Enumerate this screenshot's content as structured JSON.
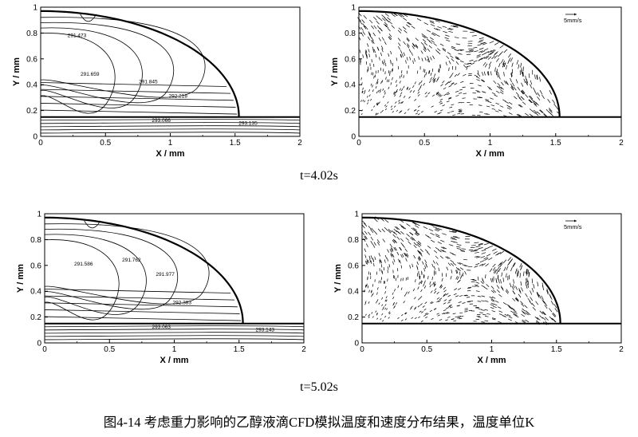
{
  "figure_caption": "图4-14 考虑重力影响的乙醇液滴CFD模拟温度和速度分布结果，温度单位K",
  "chart_data": [
    {
      "type": "contour",
      "row": 1,
      "kind": "temperature",
      "xlabel": "X / mm",
      "ylabel": "Y / mm",
      "xlim": [
        0,
        2
      ],
      "ylim": [
        0,
        1
      ],
      "xticks": [
        "0",
        "0.5",
        "1",
        "1.5",
        "2"
      ],
      "yticks": [
        "0",
        "0.2",
        "0.4",
        "0.6",
        "0.8",
        "1"
      ],
      "substrate_y": 0.15,
      "droplet_contact_x": 1.53,
      "droplet_apex_y": 0.97,
      "contour_labels": [
        {
          "text": "291.473",
          "x": 0.28,
          "y": 0.77
        },
        {
          "text": "291.659",
          "x": 0.38,
          "y": 0.47
        },
        {
          "text": "291.845",
          "x": 0.83,
          "y": 0.41
        },
        {
          "text": "292.218",
          "x": 1.06,
          "y": 0.3
        },
        {
          "text": "293.066",
          "x": 0.93,
          "y": 0.11
        },
        {
          "text": "293.135",
          "x": 1.6,
          "y": 0.09
        }
      ]
    },
    {
      "type": "vector",
      "row": 1,
      "kind": "velocity",
      "xlabel": "X / mm",
      "ylabel": "Y / mm",
      "xlim": [
        0,
        2
      ],
      "ylim": [
        0,
        1
      ],
      "xticks": [
        "0",
        "0.5",
        "1",
        "1.5",
        "2"
      ],
      "yticks": [
        "0",
        "0.2",
        "0.4",
        "0.6",
        "0.8",
        "1"
      ],
      "substrate_y": 0.15,
      "droplet_contact_x": 1.53,
      "droplet_apex_y": 0.97,
      "reference_vector": "5mm/s"
    },
    {
      "type": "contour",
      "row": 2,
      "kind": "temperature",
      "xlabel": "X / mm",
      "ylabel": "Y / mm",
      "xlim": [
        0,
        2
      ],
      "ylim": [
        0,
        1
      ],
      "xticks": [
        "0",
        "0.5",
        "1",
        "1.5",
        "2"
      ],
      "yticks": [
        "0",
        "0.2",
        "0.4",
        "0.6",
        "0.8",
        "1"
      ],
      "substrate_y": 0.15,
      "droplet_contact_x": 1.53,
      "droplet_apex_y": 0.97,
      "contour_labels": [
        {
          "text": "291.586",
          "x": 0.3,
          "y": 0.6
        },
        {
          "text": "291.762",
          "x": 0.67,
          "y": 0.63
        },
        {
          "text": "291.977",
          "x": 0.93,
          "y": 0.52
        },
        {
          "text": "292.383",
          "x": 1.06,
          "y": 0.3
        },
        {
          "text": "293.063",
          "x": 0.9,
          "y": 0.11
        },
        {
          "text": "293.143",
          "x": 1.7,
          "y": 0.09
        }
      ]
    },
    {
      "type": "vector",
      "row": 2,
      "kind": "velocity",
      "xlabel": "X / mm",
      "ylabel": "Y / mm",
      "xlim": [
        0,
        2
      ],
      "ylim": [
        0,
        1
      ],
      "xticks": [
        "0",
        "0.5",
        "1",
        "1.5",
        "2"
      ],
      "yticks": [
        "0",
        "0.2",
        "0.4",
        "0.6",
        "0.8",
        "1"
      ],
      "substrate_y": 0.15,
      "droplet_contact_x": 1.53,
      "droplet_apex_y": 0.97,
      "reference_vector": "5mm/s"
    }
  ],
  "row_captions": [
    "t=4.02s",
    "t=5.02s"
  ]
}
